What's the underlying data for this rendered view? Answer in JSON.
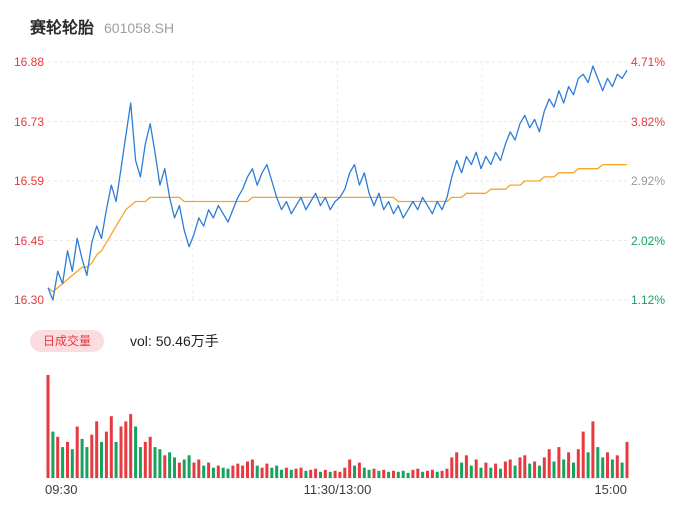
{
  "header": {
    "title": "赛轮轮胎",
    "code": "601058.SH"
  },
  "volume_header": {
    "badge": "日成交量",
    "vol_label": "vol: 50.46万手"
  },
  "colors": {
    "up": "#e8393f",
    "down": "#15a35f",
    "neutral": "#999999",
    "price_line": "#2e7cd6",
    "avg_line": "#f5a623",
    "badge_bg": "#fbdce0",
    "grid": "#e7e7e7"
  },
  "chart_data": {
    "type": "line",
    "subtype": "intraday-stock",
    "title": "赛轮轮胎 601058.SH 分时走势与成交量",
    "x_axis_labels": [
      "09:30",
      "11:30/13:00",
      "15:00"
    ],
    "y_axis_left": [
      "16.88",
      "16.73",
      "16.59",
      "16.45",
      "16.30"
    ],
    "y_axis_left_colors": [
      "#e8393f",
      "#e8393f",
      "#e8393f",
      "#e8393f",
      "#e8393f"
    ],
    "y_axis_right": [
      "4.71%",
      "3.82%",
      "2.92%",
      "2.02%",
      "1.12%"
    ],
    "y_axis_right_colors": [
      "#e8393f",
      "#e8393f",
      "#999999",
      "#15a35f",
      "#15a35f"
    ],
    "price_range": [
      16.3,
      16.88
    ],
    "percent_range": [
      1.12,
      4.71
    ],
    "grid": "dashed",
    "legend_position": "none",
    "series": [
      {
        "name": "price",
        "color": "#2e7cd6",
        "values": [
          16.33,
          16.3,
          16.37,
          16.34,
          16.42,
          16.37,
          16.45,
          16.4,
          16.36,
          16.44,
          16.48,
          16.45,
          16.52,
          16.58,
          16.54,
          16.62,
          16.7,
          16.78,
          16.64,
          16.6,
          16.68,
          16.73,
          16.66,
          16.58,
          16.62,
          16.55,
          16.5,
          16.53,
          16.47,
          16.43,
          16.46,
          16.5,
          16.48,
          16.52,
          16.5,
          16.53,
          16.51,
          16.49,
          16.52,
          16.55,
          16.57,
          16.6,
          16.62,
          16.58,
          16.61,
          16.63,
          16.59,
          16.55,
          16.52,
          16.54,
          16.51,
          16.53,
          16.55,
          16.52,
          16.54,
          16.56,
          16.53,
          16.55,
          16.52,
          16.54,
          16.55,
          16.57,
          16.61,
          16.63,
          16.58,
          16.61,
          16.56,
          16.53,
          16.56,
          16.52,
          16.54,
          16.51,
          16.53,
          16.5,
          16.52,
          16.54,
          16.52,
          16.55,
          16.53,
          16.51,
          16.54,
          16.52,
          16.55,
          16.6,
          16.64,
          16.61,
          16.65,
          16.63,
          16.66,
          16.62,
          16.65,
          16.63,
          16.66,
          16.64,
          16.68,
          16.71,
          16.69,
          16.73,
          16.75,
          16.72,
          16.74,
          16.71,
          16.76,
          16.79,
          16.77,
          16.81,
          16.78,
          16.82,
          16.8,
          16.84,
          16.85,
          16.83,
          16.87,
          16.84,
          16.81,
          16.84,
          16.82,
          16.85,
          16.84,
          16.86
        ]
      },
      {
        "name": "avg",
        "color": "#f5a623",
        "values": [
          16.33,
          16.32,
          16.33,
          16.34,
          16.35,
          16.36,
          16.37,
          16.38,
          16.38,
          16.39,
          16.41,
          16.42,
          16.44,
          16.46,
          16.48,
          16.5,
          16.52,
          16.53,
          16.54,
          16.54,
          16.54,
          16.55,
          16.55,
          16.55,
          16.55,
          16.55,
          16.55,
          16.55,
          16.54,
          16.54,
          16.54,
          16.54,
          16.54,
          16.54,
          16.54,
          16.54,
          16.54,
          16.54,
          16.54,
          16.54,
          16.54,
          16.54,
          16.55,
          16.55,
          16.55,
          16.55,
          16.55,
          16.55,
          16.55,
          16.55,
          16.55,
          16.55,
          16.55,
          16.55,
          16.55,
          16.55,
          16.55,
          16.55,
          16.55,
          16.55,
          16.55,
          16.55,
          16.55,
          16.55,
          16.55,
          16.55,
          16.55,
          16.55,
          16.55,
          16.55,
          16.55,
          16.55,
          16.54,
          16.54,
          16.54,
          16.54,
          16.54,
          16.54,
          16.54,
          16.54,
          16.54,
          16.54,
          16.54,
          16.55,
          16.55,
          16.55,
          16.56,
          16.56,
          16.56,
          16.56,
          16.56,
          16.57,
          16.57,
          16.57,
          16.57,
          16.58,
          16.58,
          16.58,
          16.59,
          16.59,
          16.59,
          16.59,
          16.6,
          16.6,
          16.6,
          16.61,
          16.61,
          16.61,
          16.61,
          16.62,
          16.62,
          16.62,
          16.62,
          16.62,
          16.63,
          16.63,
          16.63,
          16.63,
          16.63,
          16.63
        ]
      }
    ],
    "volume": {
      "unit": "万手",
      "total_label": "50.46万手",
      "values": [
        1.0,
        0.45,
        0.4,
        0.3,
        0.35,
        0.28,
        0.5,
        0.38,
        0.3,
        0.42,
        0.55,
        0.35,
        0.45,
        0.6,
        0.35,
        0.5,
        0.55,
        0.62,
        0.5,
        0.3,
        0.35,
        0.4,
        0.3,
        0.28,
        0.22,
        0.25,
        0.2,
        0.15,
        0.18,
        0.22,
        0.15,
        0.18,
        0.12,
        0.15,
        0.1,
        0.12,
        0.1,
        0.09,
        0.12,
        0.14,
        0.12,
        0.16,
        0.18,
        0.12,
        0.1,
        0.14,
        0.1,
        0.12,
        0.08,
        0.1,
        0.08,
        0.09,
        0.1,
        0.07,
        0.08,
        0.09,
        0.06,
        0.08,
        0.06,
        0.07,
        0.06,
        0.1,
        0.18,
        0.12,
        0.15,
        0.1,
        0.08,
        0.09,
        0.07,
        0.08,
        0.06,
        0.07,
        0.06,
        0.07,
        0.05,
        0.08,
        0.09,
        0.06,
        0.07,
        0.08,
        0.06,
        0.07,
        0.09,
        0.2,
        0.25,
        0.15,
        0.22,
        0.12,
        0.18,
        0.1,
        0.15,
        0.1,
        0.14,
        0.09,
        0.16,
        0.18,
        0.12,
        0.2,
        0.22,
        0.14,
        0.16,
        0.12,
        0.2,
        0.28,
        0.16,
        0.3,
        0.18,
        0.25,
        0.15,
        0.28,
        0.45,
        0.25,
        0.55,
        0.3,
        0.2,
        0.25,
        0.18,
        0.22,
        0.15,
        0.35
      ],
      "directions": [
        "r",
        "g",
        "r",
        "g",
        "r",
        "g",
        "r",
        "g",
        "g",
        "r",
        "r",
        "g",
        "r",
        "r",
        "g",
        "r",
        "r",
        "r",
        "g",
        "g",
        "r",
        "r",
        "g",
        "g",
        "r",
        "g",
        "g",
        "r",
        "g",
        "g",
        "r",
        "r",
        "g",
        "r",
        "g",
        "r",
        "g",
        "g",
        "r",
        "r",
        "r",
        "r",
        "r",
        "g",
        "r",
        "r",
        "g",
        "g",
        "g",
        "r",
        "g",
        "r",
        "r",
        "g",
        "r",
        "r",
        "g",
        "r",
        "g",
        "r",
        "r",
        "r",
        "r",
        "g",
        "r",
        "g",
        "g",
        "r",
        "g",
        "r",
        "g",
        "r",
        "g",
        "g",
        "g",
        "r",
        "r",
        "g",
        "r",
        "r",
        "g",
        "r",
        "r",
        "r",
        "r",
        "g",
        "r",
        "g",
        "r",
        "g",
        "r",
        "g",
        "r",
        "g",
        "r",
        "r",
        "g",
        "r",
        "r",
        "g",
        "r",
        "g",
        "r",
        "r",
        "g",
        "r",
        "g",
        "r",
        "g",
        "r",
        "r",
        "g",
        "r",
        "g",
        "g",
        "r",
        "g",
        "r",
        "g",
        "r"
      ]
    }
  }
}
